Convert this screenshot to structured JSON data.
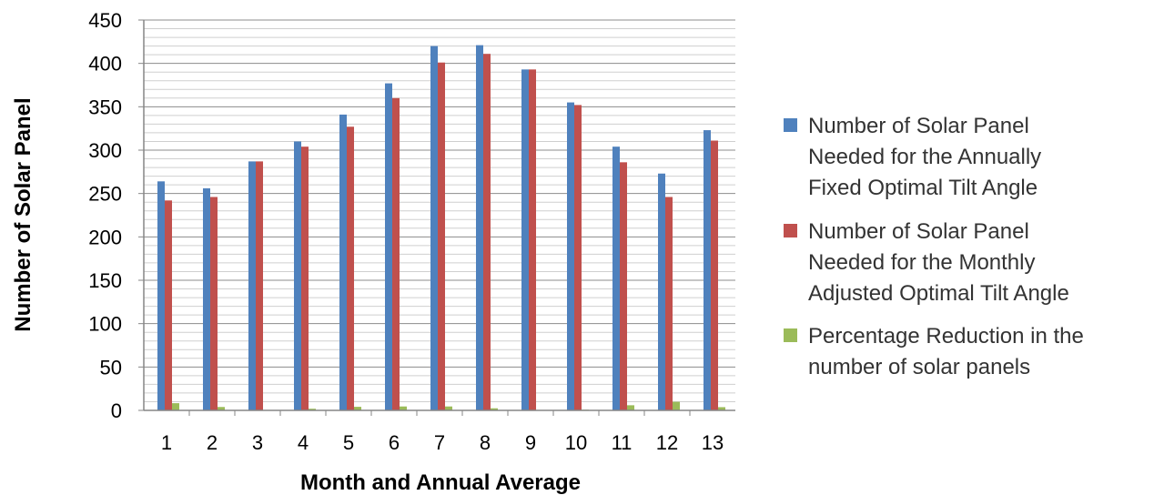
{
  "chart_data": {
    "type": "bar",
    "title": "",
    "xlabel": "Month and Annual Average",
    "ylabel": "Number of Solar Panel",
    "ylim": [
      0,
      450
    ],
    "y_ticks": [
      0,
      50,
      100,
      150,
      200,
      250,
      300,
      350,
      400,
      450
    ],
    "minor_grid_step": 10,
    "grid": true,
    "legend_position": "right",
    "categories": [
      "1",
      "2",
      "3",
      "4",
      "5",
      "6",
      "7",
      "8",
      "9",
      "10",
      "11",
      "12",
      "13"
    ],
    "series": [
      {
        "name_lines": [
          "Number of Solar Panel",
          "Needed for the Annually",
          "Fixed Optimal Tilt Angle"
        ],
        "color": "#4F81BD",
        "values": [
          264,
          256,
          287,
          310,
          341,
          377,
          420,
          421,
          393,
          355,
          304,
          273,
          323
        ]
      },
      {
        "name_lines": [
          "Number of Solar Panel",
          "Needed for the Monthly",
          "Adjusted  Optimal Tilt Angle"
        ],
        "color": "#C0504D",
        "values": [
          242,
          246,
          287,
          304,
          327,
          360,
          401,
          411,
          393,
          352,
          286,
          246,
          311
        ]
      },
      {
        "name_lines": [
          "Percentage Reduction in the",
          "number of solar panels"
        ],
        "color": "#9BBB59",
        "values": [
          8.3,
          3.9,
          0,
          1.9,
          4.1,
          4.5,
          4.5,
          2.4,
          0,
          0.8,
          5.9,
          9.9,
          3.7
        ]
      }
    ]
  }
}
